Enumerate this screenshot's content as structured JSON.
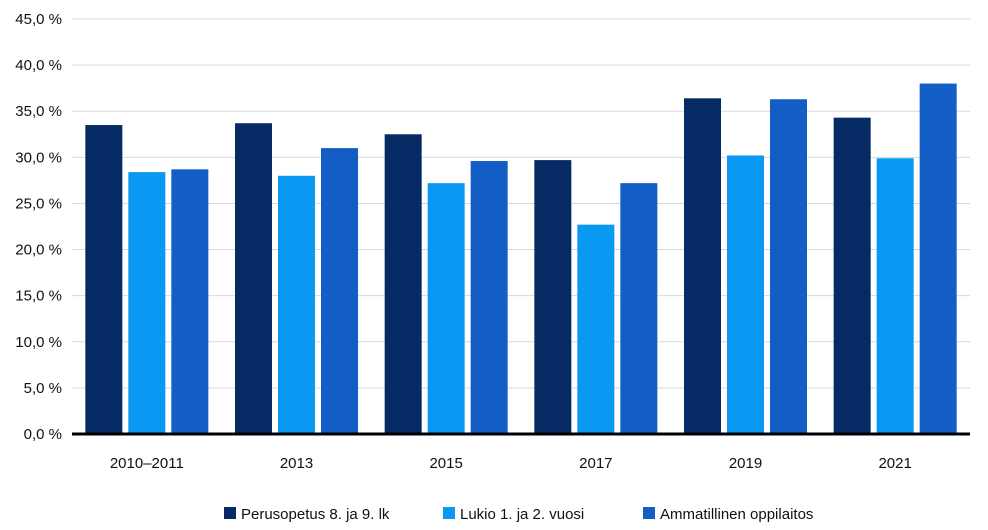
{
  "chart_data": {
    "type": "bar",
    "title": "",
    "xlabel": "",
    "ylabel": "",
    "categories": [
      "2010–2011",
      "2013",
      "2015",
      "2017",
      "2019",
      "2021"
    ],
    "series": [
      {
        "name": "Perusopetus 8. ja 9. lk",
        "color": "#062a64",
        "values": [
          33.5,
          33.7,
          32.5,
          29.7,
          36.4,
          34.3
        ]
      },
      {
        "name": "Lukio 1. ja 2. vuosi",
        "color": "#0a99f2",
        "values": [
          28.4,
          28.0,
          27.2,
          22.7,
          30.2,
          29.9
        ]
      },
      {
        "name": "Ammatillinen oppilaitos",
        "color": "#135ec4",
        "values": [
          28.7,
          31.0,
          29.6,
          27.2,
          36.3,
          38.0
        ]
      }
    ],
    "ylim": [
      0,
      45
    ],
    "y_ticks": [
      0,
      5,
      10,
      15,
      20,
      25,
      30,
      35,
      40,
      45
    ],
    "y_tick_labels": [
      "0,0 %",
      "5,0 %",
      "10,0 %",
      "15,0 %",
      "20,0 %",
      "25,0 %",
      "30,0 %",
      "35,0 %",
      "40,0 %",
      "45,0 %"
    ],
    "grid": true,
    "legend_position": "bottom"
  }
}
